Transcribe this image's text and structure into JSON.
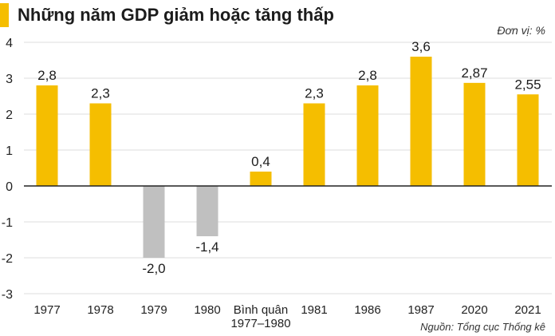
{
  "title": "Những năm GDP giảm hoặc tăng thấp",
  "unit_label": "Đơn vị: %",
  "source_label": "Nguồn: Tổng cục Thống kê",
  "colors": {
    "accent": "#F5BE00",
    "positive_bar": "#F5BE00",
    "negative_bar": "#C0C0C0",
    "gridline": "#DDDDDD",
    "zero_line": "#222222"
  },
  "chart_data": {
    "type": "bar",
    "categories": [
      "1977",
      "1978",
      "1979",
      "1980",
      "Bình quân\n1977–1980",
      "1981",
      "1986",
      "1987",
      "2020",
      "2021"
    ],
    "values": [
      2.8,
      2.3,
      -2.0,
      -1.4,
      0.4,
      2.3,
      2.8,
      3.6,
      2.87,
      2.55
    ],
    "data_labels": [
      "2,8",
      "2,3",
      "-2,0",
      "-1,4",
      "0,4",
      "2,3",
      "2,8",
      "3,6",
      "2,87",
      "2,55"
    ],
    "y_ticks": [
      4,
      3,
      2,
      1,
      0,
      -1,
      -2,
      -3
    ],
    "y_tick_labels": [
      "4",
      "3",
      "2",
      "1",
      "0",
      "-1",
      "-2",
      "-3"
    ],
    "ylim": [
      -3,
      4
    ],
    "grid": true,
    "legend": "none"
  }
}
